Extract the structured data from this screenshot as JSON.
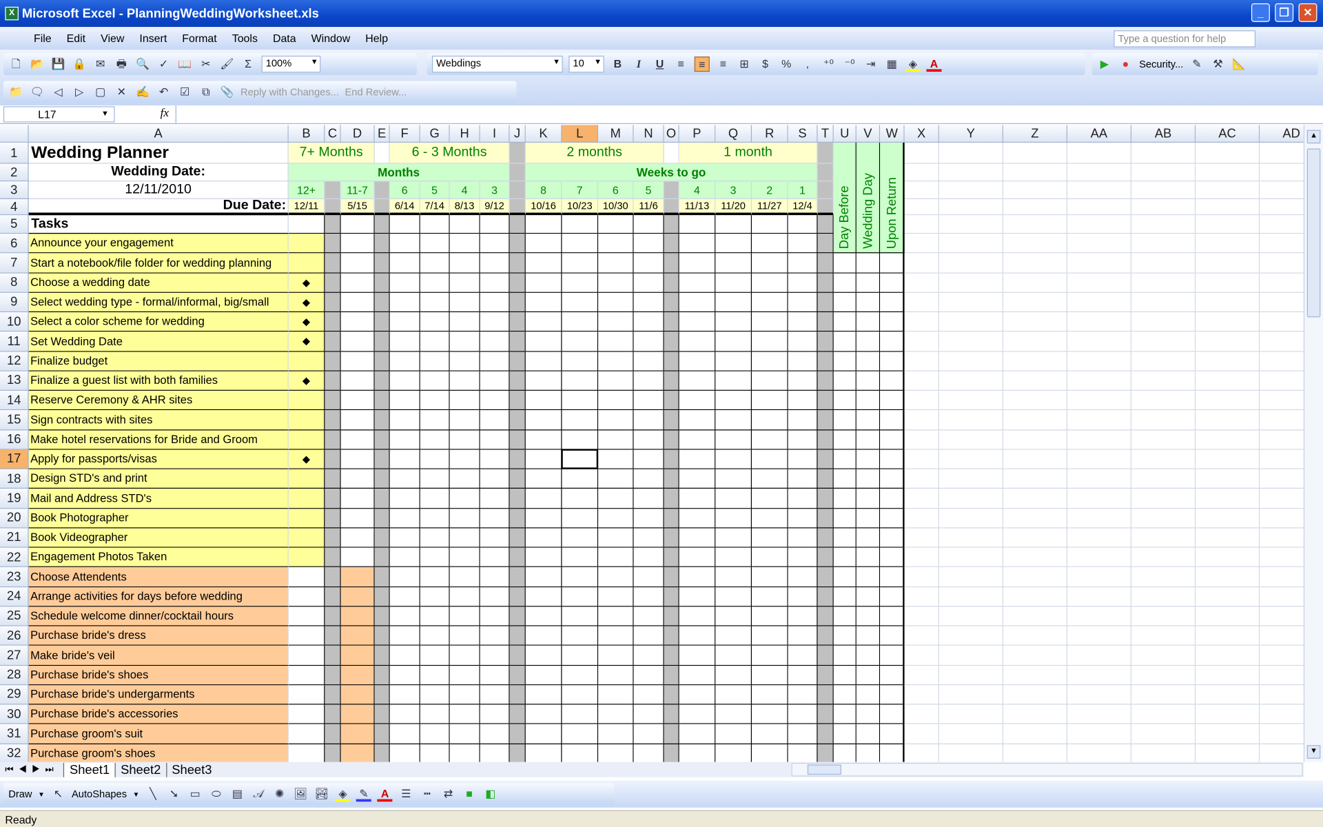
{
  "window": {
    "title": "Microsoft Excel - PlanningWeddingWorksheet.xls",
    "controls": [
      "minimize",
      "restore",
      "close"
    ]
  },
  "menu": [
    "File",
    "Edit",
    "View",
    "Insert",
    "Format",
    "Tools",
    "Data",
    "Window",
    "Help"
  ],
  "help_placeholder": "Type a question for help",
  "toolbar": {
    "zoom": "100%",
    "font": "Webdings",
    "font_size": "10",
    "bold": "B",
    "italic": "I",
    "underline": "U",
    "currency": "$",
    "percent": "%",
    "comma": ",",
    "security": "Security...",
    "sum": "Σ"
  },
  "review_toolbar": {
    "reply": "Reply with Changes...",
    "end_review": "End Review..."
  },
  "name_box": "L17",
  "fx": "fx",
  "columns": [
    "A",
    "B",
    "C",
    "D",
    "E",
    "F",
    "G",
    "H",
    "I",
    "J",
    "K",
    "L",
    "M",
    "N",
    "O",
    "P",
    "Q",
    "R",
    "S",
    "T",
    "U",
    "V",
    "W",
    "X",
    "Y",
    "Z",
    "AA",
    "AB",
    "AC",
    "AD"
  ],
  "selected_column": "L",
  "selected_row": 17,
  "sheet": {
    "title": "Wedding Planner",
    "wedding_date_label": "Wedding Date:",
    "wedding_date": "12/11/2010",
    "due_date_label": "Due Date:",
    "tasks_label": "Tasks",
    "period_headers": [
      {
        "col": "B",
        "span": 3,
        "text": "7+ Months"
      },
      {
        "col": "F",
        "span": 4,
        "text": "6 - 3 Months"
      },
      {
        "col": "K",
        "span": 4,
        "text": "2 months"
      },
      {
        "col": "P",
        "span": 4,
        "text": "1 month"
      }
    ],
    "group_headers": [
      {
        "col": "B",
        "span": 8,
        "text": "Months"
      },
      {
        "col": "K",
        "span": 9,
        "text": "Weeks to go"
      }
    ],
    "counts": {
      "B": "12+",
      "D": "11-7",
      "F": "6",
      "G": "5",
      "H": "4",
      "I": "3",
      "K": "8",
      "L": "7",
      "M": "6",
      "N": "5",
      "P": "4",
      "Q": "3",
      "R": "2",
      "S": "1"
    },
    "due_dates": {
      "B": "12/11",
      "D": "5/15",
      "F": "6/14",
      "G": "7/14",
      "H": "8/13",
      "I": "9/12",
      "K": "10/16",
      "L": "10/23",
      "M": "10/30",
      "N": "11/6",
      "P": "11/13",
      "Q": "11/20",
      "R": "11/27",
      "S": "12/4"
    },
    "vertical_headers": {
      "U": "Day Before",
      "V": "Wedding Day",
      "W": "Upon Return"
    },
    "tasks": [
      {
        "row": 6,
        "text": "Announce your  engagement",
        "group": "7+",
        "mark": false
      },
      {
        "row": 7,
        "text": "Start a notebook/file folder for wedding planning",
        "group": "7+",
        "mark": false
      },
      {
        "row": 8,
        "text": "Choose a wedding date",
        "group": "7+",
        "mark": true
      },
      {
        "row": 9,
        "text": "Select wedding type - formal/informal, big/small",
        "group": "7+",
        "mark": true
      },
      {
        "row": 10,
        "text": "Select a color scheme for wedding",
        "group": "7+",
        "mark": true
      },
      {
        "row": 11,
        "text": "Set Wedding Date",
        "group": "7+",
        "mark": true
      },
      {
        "row": 12,
        "text": "Finalize budget",
        "group": "7+",
        "mark": false
      },
      {
        "row": 13,
        "text": "Finalize a guest list with both families",
        "group": "7+",
        "mark": true
      },
      {
        "row": 14,
        "text": "Reserve Ceremony & AHR sites",
        "group": "7+",
        "mark": false
      },
      {
        "row": 15,
        "text": "Sign contracts with sites",
        "group": "7+",
        "mark": false
      },
      {
        "row": 16,
        "text": "Make hotel reservations for Bride and Groom",
        "group": "7+",
        "mark": false
      },
      {
        "row": 17,
        "text": "Apply for passports/visas",
        "group": "7+",
        "mark": true
      },
      {
        "row": 18,
        "text": "Design STD's and print",
        "group": "7+",
        "mark": false
      },
      {
        "row": 19,
        "text": "Mail and Address STD's",
        "group": "7+",
        "mark": false
      },
      {
        "row": 20,
        "text": "Book Photographer",
        "group": "7+",
        "mark": false
      },
      {
        "row": 21,
        "text": "Book Videographer",
        "group": "7+",
        "mark": false
      },
      {
        "row": 22,
        "text": "Engagement Photos Taken",
        "group": "7+",
        "mark": false
      },
      {
        "row": 23,
        "text": "Choose Attendents",
        "group": "11-7",
        "mark": false
      },
      {
        "row": 24,
        "text": "Arrange activities for days before wedding",
        "group": "11-7",
        "mark": false
      },
      {
        "row": 25,
        "text": "Schedule welcome dinner/cocktail hours",
        "group": "11-7",
        "mark": false
      },
      {
        "row": 26,
        "text": "Purchase bride's dress",
        "group": "11-7",
        "mark": false
      },
      {
        "row": 27,
        "text": "Make bride's veil",
        "group": "11-7",
        "mark": false
      },
      {
        "row": 28,
        "text": "Purchase bride's shoes",
        "group": "11-7",
        "mark": false
      },
      {
        "row": 29,
        "text": "Purchase bride's undergarments",
        "group": "11-7",
        "mark": false
      },
      {
        "row": 30,
        "text": "Purchase bride's accessories",
        "group": "11-7",
        "mark": false
      },
      {
        "row": 31,
        "text": "Purchase groom's suit",
        "group": "11-7",
        "mark": false
      },
      {
        "row": 32,
        "text": "Purchase groom's shoes",
        "group": "11-7",
        "mark": false
      }
    ],
    "mark_glyph": "◆"
  },
  "colors": {
    "yellow": "#ffff99",
    "orange": "#ffcc99",
    "green": "#ccffcc",
    "light_yellow": "#ffffcc",
    "gray": "#c0c0c0",
    "green_text": "#008000"
  },
  "sheet_tabs": [
    "Sheet1",
    "Sheet2",
    "Sheet3"
  ],
  "active_sheet": "Sheet1",
  "draw_toolbar": {
    "draw": "Draw",
    "autoshapes": "AutoShapes"
  },
  "status": "Ready"
}
